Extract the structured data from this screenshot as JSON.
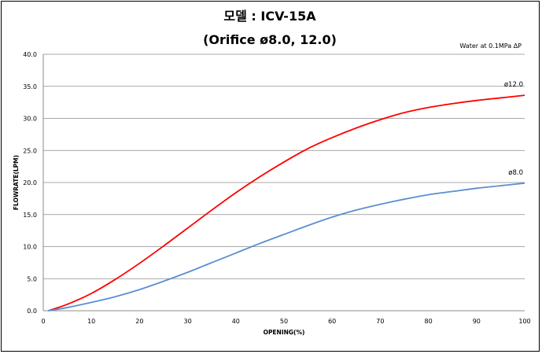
{
  "chart_data": {
    "type": "line",
    "title": "모델 : ICV-15A",
    "subtitle": "(Orifice ø8.0, 12.0)",
    "note": "Water at 0.1MPa ΔP",
    "xlabel": "OPENING(%)",
    "ylabel": "FLOWRATE(LPM)",
    "xlim": [
      0,
      100
    ],
    "ylim": [
      0,
      40
    ],
    "x_ticks": [
      "0",
      "10",
      "20",
      "30",
      "40",
      "50",
      "60",
      "70",
      "80",
      "90",
      "100"
    ],
    "y_ticks": [
      "0.0",
      "5.0",
      "10.0",
      "15.0",
      "20.0",
      "25.0",
      "30.0",
      "35.0",
      "40.0"
    ],
    "grid": "horizontal",
    "series": [
      {
        "name": "ø12.0",
        "color": "#ff0000",
        "x": [
          1,
          5,
          10,
          15,
          20,
          25,
          30,
          35,
          40,
          45,
          50,
          55,
          60,
          65,
          70,
          75,
          80,
          85,
          90,
          95,
          100
        ],
        "y": [
          0,
          1.0,
          2.7,
          4.9,
          7.4,
          10.1,
          12.9,
          15.7,
          18.4,
          20.9,
          23.2,
          25.3,
          27.0,
          28.5,
          29.8,
          30.9,
          31.7,
          32.3,
          32.8,
          33.2,
          33.6
        ]
      },
      {
        "name": "ø8.0",
        "color": "#5b8fd0",
        "x": [
          1,
          5,
          10,
          15,
          20,
          25,
          30,
          35,
          40,
          45,
          50,
          55,
          60,
          65,
          70,
          75,
          80,
          85,
          90,
          95,
          100
        ],
        "y": [
          0,
          0.5,
          1.3,
          2.2,
          3.3,
          4.6,
          6.0,
          7.5,
          9.0,
          10.5,
          11.9,
          13.3,
          14.6,
          15.7,
          16.6,
          17.4,
          18.1,
          18.6,
          19.1,
          19.5,
          19.9
        ]
      }
    ]
  }
}
